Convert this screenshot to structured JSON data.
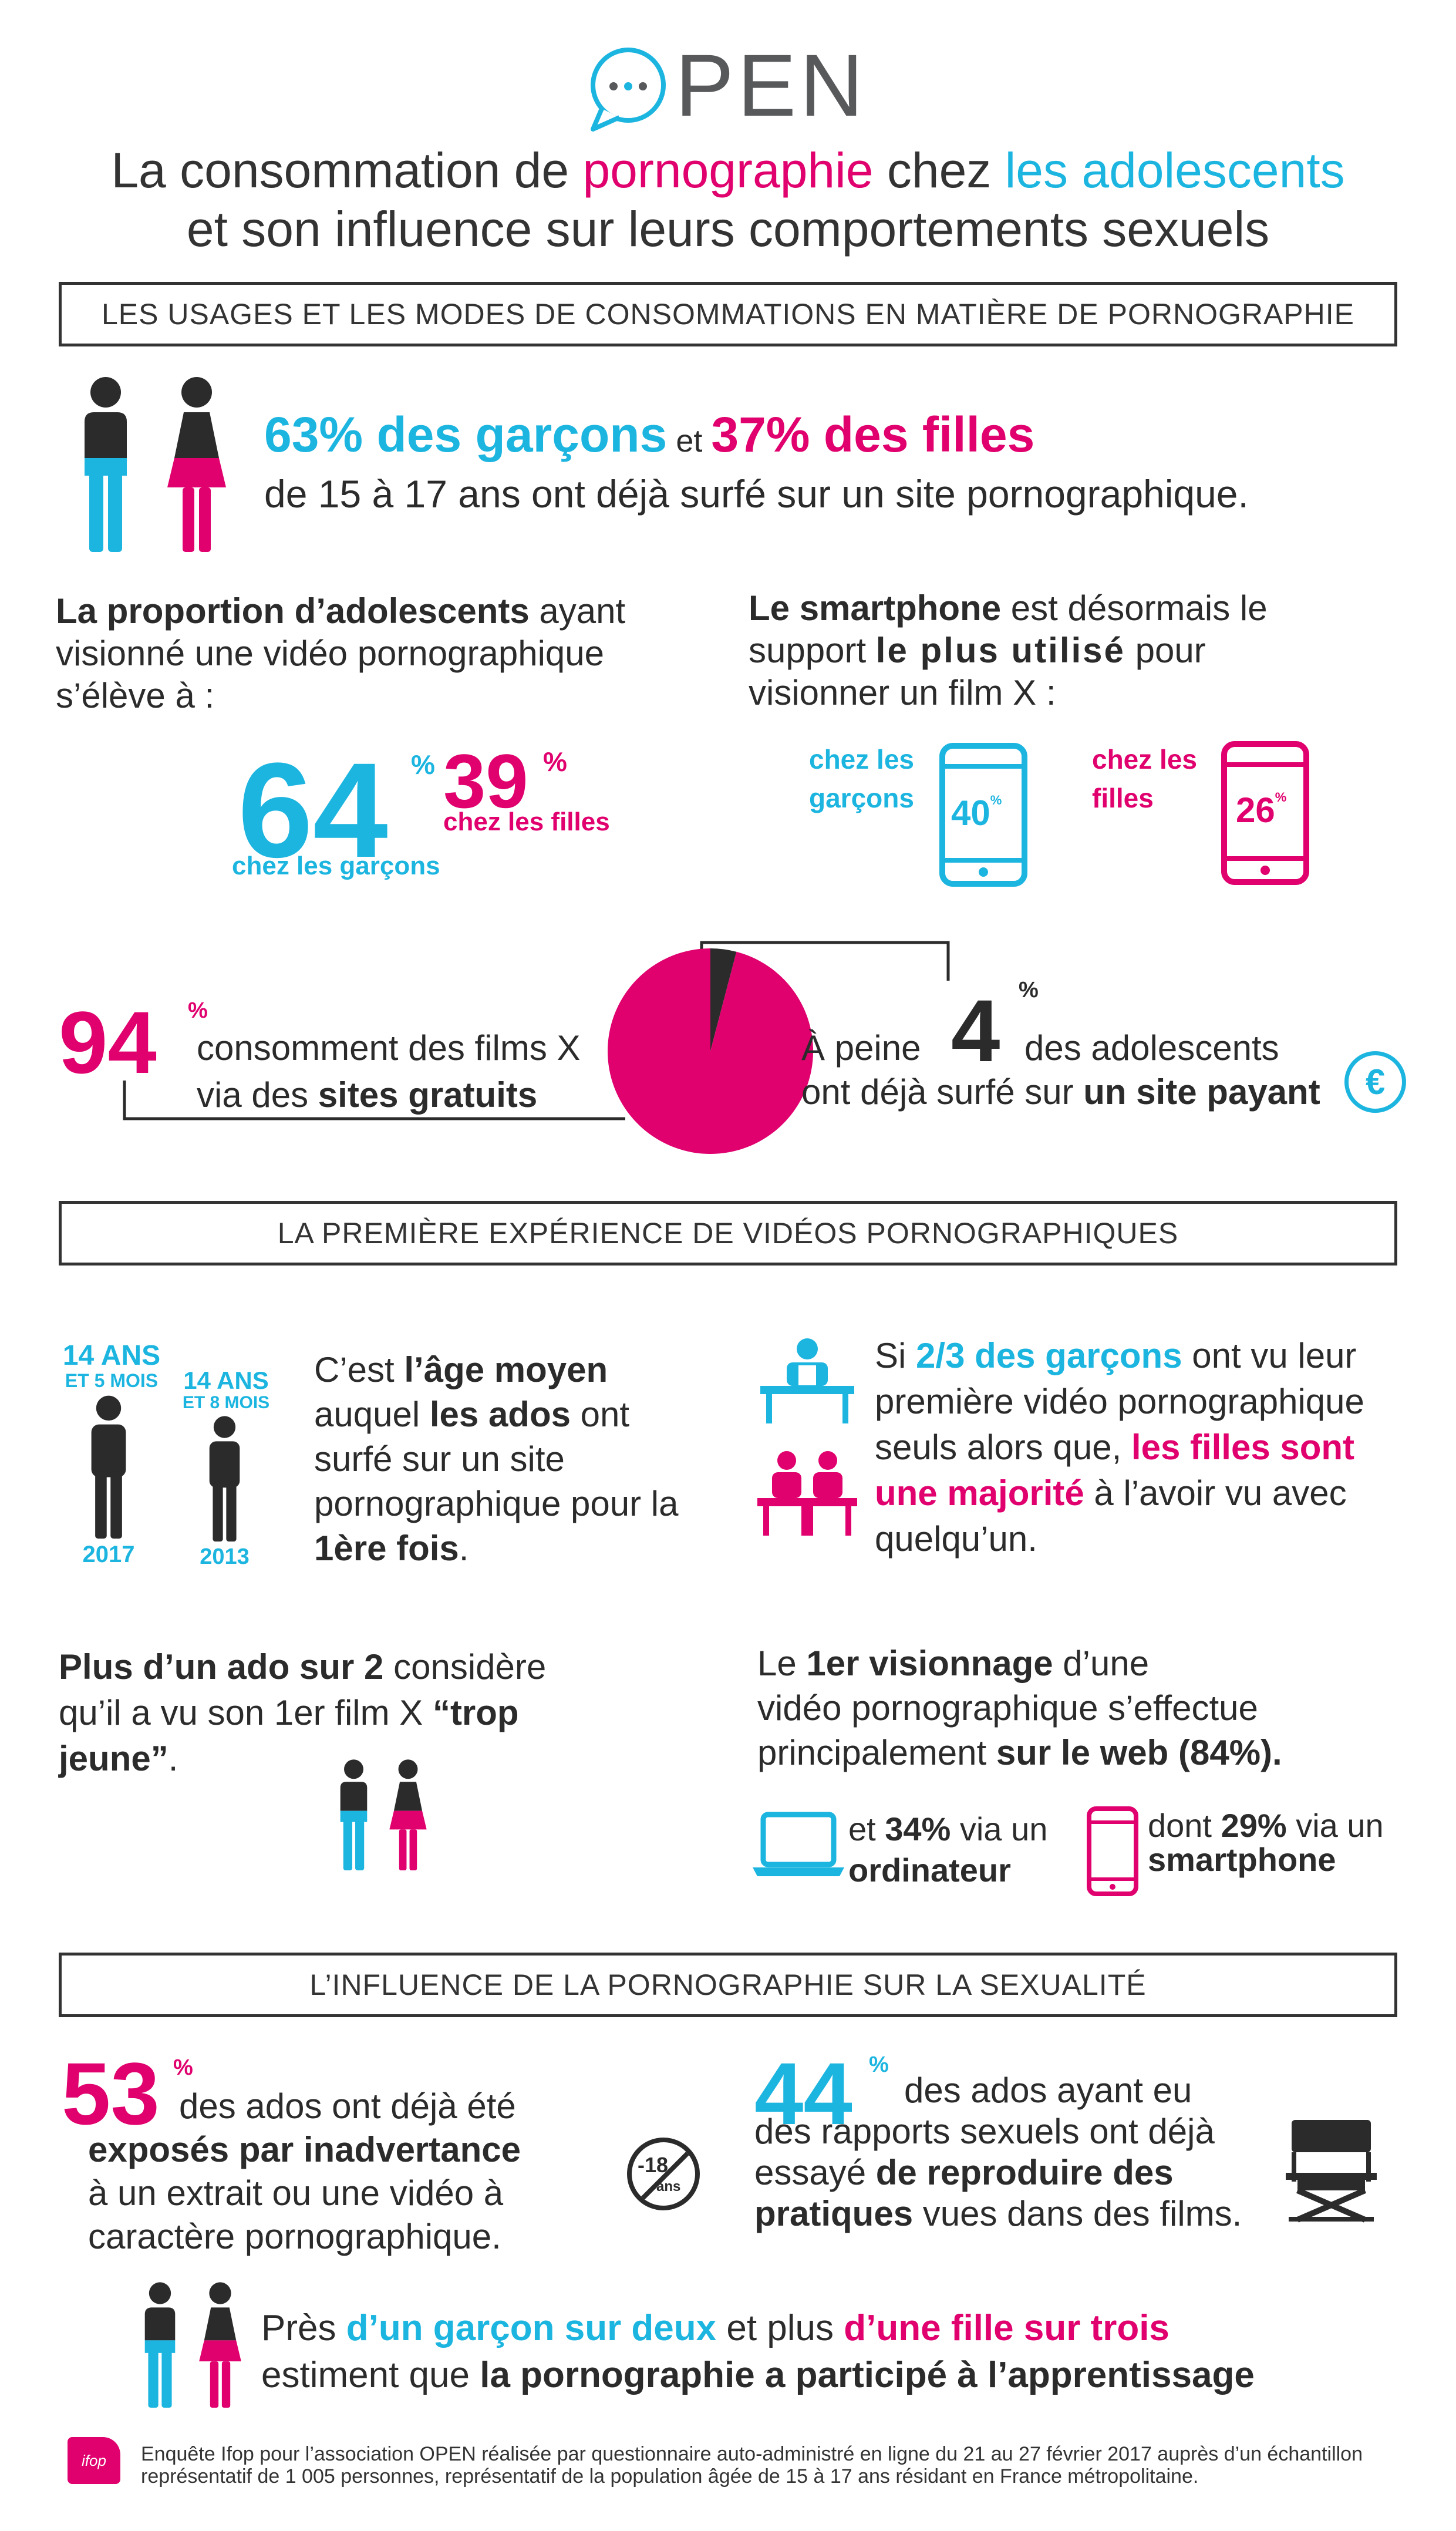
{
  "colors": {
    "cyan": "#1cb5e0",
    "pink": "#e0006e",
    "dark": "#2b2b2b",
    "grey": "#58595b"
  },
  "logo": {
    "text": "PEN",
    "icon": "speech-bubble-icon"
  },
  "title": {
    "line1_a": "La consommation de ",
    "line1_b": "pornographie",
    "line1_c": " chez ",
    "line1_d": "les adolescents",
    "line2": "et son influence sur leurs comportements sexuels"
  },
  "sections": {
    "s1": "LES USAGES ET LES MODES DE CONSOMMATIONS EN MATIÈRE DE PORNOGRAPHIE",
    "s2": "LA PREMIÈRE EXPÉRIENCE DE VIDÉOS PORNOGRAPHIQUES",
    "s3": "L’INFLUENCE DE LA PORNOGRAPHIE SUR LA SEXUALITÉ"
  },
  "surfed": {
    "boys": "63% des garçons",
    "et": " et ",
    "girls": "37% des filles",
    "line2": "de 15 à 17 ans ont déjà surfé sur un site pornographique."
  },
  "proportion": {
    "lead": "La proportion d’adolescents",
    "rest1": " ayant",
    "line2": "visionné une vidéo pornographique",
    "line3": "s’élève à :",
    "boys_value": 64,
    "boys_num": "64",
    "boys_label": "chez les garçons",
    "girls_value": 39,
    "girls_num": "39",
    "girls_label": "chez les filles",
    "pct": "%"
  },
  "smartphone": {
    "lead": "Le smartphone",
    "rest1": " est désormais le",
    "line2a": "support ",
    "line2b": "le plus utilisé",
    "line2c": " pour",
    "line3": "visionner un film X :",
    "boys_label1": "chez les",
    "boys_label2": "garçons",
    "boys_value": "40",
    "girls_label1": "chez les",
    "girls_label2": "filles",
    "girls_value": "26",
    "pct": "%"
  },
  "free_sites": {
    "value": 94,
    "num": "94",
    "pct": "%",
    "line1": "consomment des films X",
    "line2a": "via des ",
    "line2b": "sites gratuits"
  },
  "paid_sites": {
    "value": 4,
    "prefix": "À peine ",
    "num": "4",
    "pct": "%",
    "line1": "des adolescents",
    "line2a": "ont déjà surfé sur ",
    "line2b": "un site payant",
    "icon_text": "€"
  },
  "first_age": {
    "age2017": "14 ANS",
    "months2017": "ET 5 MOIS",
    "year2017": "2017",
    "age2013": "14 ANS",
    "months2013": "ET 8 MOIS",
    "year2013": "2013",
    "t1": "C’est ",
    "t2": "l’âge moyen",
    "t3": "auquel ",
    "t4": "les ados",
    "t5": " ont",
    "t6": "surfé sur un site",
    "t7": "pornographique pour la",
    "t8": "1ère fois",
    "t9": "."
  },
  "alone": {
    "t1": "Si ",
    "t2": "2/3 des garçons",
    "t3": " ont vu leur",
    "t4": "première vidéo pornographique",
    "t5": "seuls alors que, ",
    "t6": "les filles sont",
    "t7": "une majorité",
    "t8": " à l’avoir vu avec",
    "t9": "quelqu’un."
  },
  "too_young": {
    "t1": "Plus d’un ado sur 2",
    "t2": " considère",
    "t3": "qu’il a vu son 1er film X ",
    "t4": "“trop",
    "t5": "jeune”",
    "t6": "."
  },
  "web": {
    "t1": "Le ",
    "t2": "1er visionnage",
    "t3": " d’une",
    "t4": "vidéo pornographique s’effectue",
    "t5": "principalement ",
    "t6": "sur le web (84%).",
    "laptop1a": "et ",
    "laptop1b": "34%",
    "laptop1c": " via un",
    "laptop2": "ordinateur",
    "phone1a": "dont ",
    "phone1b": "29%",
    "phone1c": " via un",
    "phone2": "smartphone"
  },
  "exposed": {
    "value": 53,
    "num": "53",
    "pct": "%",
    "t1": "des ados ont déjà été",
    "t2": "exposés par inadvertance",
    "t3": "à un extrait ou une vidéo à",
    "t4": "caractère pornographique.",
    "badge1": "-18",
    "badge2": "ans"
  },
  "reproduce": {
    "value": 44,
    "num": "44",
    "pct": "%",
    "t1": "des ados ayant eu",
    "t2": "des rapports sexuels ont déjà",
    "t3a": "essayé ",
    "t3b": "de reproduire des",
    "t4a": "pratiques",
    "t4b": " vues dans des films."
  },
  "learning": {
    "t1": "Près ",
    "t2": "d’un garçon sur deux",
    "t3": " et plus ",
    "t4": "d’une fille sur trois",
    "t5": "estiment que ",
    "t6": "la pornographie a participé à l’apprentissage"
  },
  "footer": {
    "logo": "ifop",
    "line1": "Enquête Ifop pour l’association OPEN réalisée par questionnaire auto-administré en ligne du 21 au 27 février 2017 auprès d’un échantillon",
    "line2": "représentatif  de 1 005 personnes, représentatif de la population âgée de 15 à 17 ans résidant en France métropolitaine."
  }
}
